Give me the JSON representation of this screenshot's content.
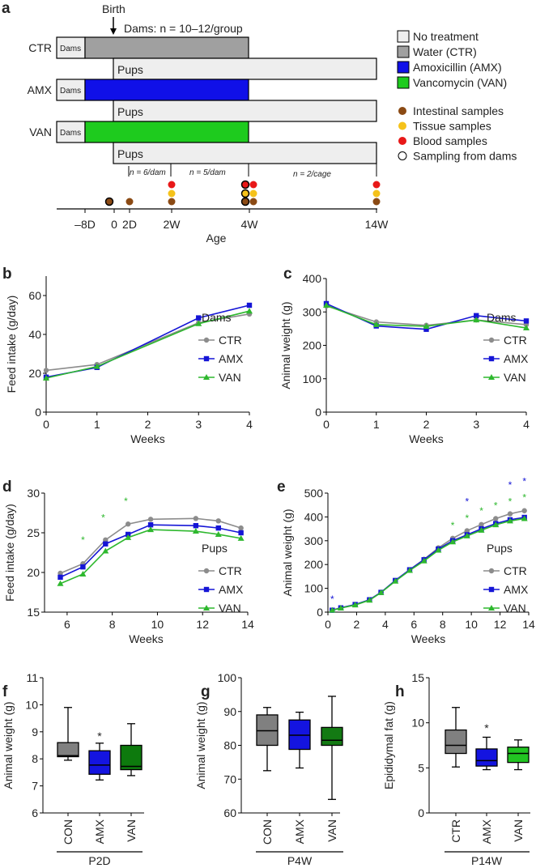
{
  "panel_labels": {
    "a": "a",
    "b": "b",
    "c": "c",
    "d": "d",
    "e": "e",
    "f": "f",
    "g": "g",
    "h": "h"
  },
  "timeline": {
    "birth": "Birth",
    "dams_n": "Dams: n = 10–12/group",
    "groups": [
      "CTR",
      "AMX",
      "VAN"
    ],
    "dams_label": "Dams",
    "pups_label": "Pups",
    "n_labels": [
      "n = 6/dam",
      "n = 5/dam",
      "n = 2/cage"
    ],
    "ticks": [
      "–8D",
      "0",
      "2D",
      "2W",
      "4W",
      "14W"
    ],
    "axis_label": "Age",
    "treatment_legend": [
      {
        "label": "No treatment",
        "color": "#eeeeee"
      },
      {
        "label": "Water (CTR)",
        "color": "#a0a0a0"
      },
      {
        "label": "Amoxicillin (AMX)",
        "color": "#1010e8"
      },
      {
        "label": "Vancomycin (VAN)",
        "color": "#1ecb1e"
      }
    ],
    "sample_legend": [
      {
        "label": "Intestinal samples",
        "color": "#8b4a14"
      },
      {
        "label": "Tissue samples",
        "color": "#f5c21a"
      },
      {
        "label": "Blood samples",
        "color": "#e81818"
      },
      {
        "label": "Sampling from dams",
        "color": "#ffffff"
      }
    ]
  },
  "chart_data": [
    {
      "id": "b",
      "type": "line",
      "xlabel": "Weeks",
      "ylabel": "Feed intake (g/day)",
      "legend_title": "Dams",
      "xlim": [
        0,
        4
      ],
      "ylim": [
        0,
        70
      ],
      "xticks": [
        0,
        1,
        2,
        3,
        4
      ],
      "yticks": [
        0,
        20,
        40,
        60
      ],
      "legend": "right",
      "series": [
        {
          "name": "CTR",
          "color": "#8c8c8c",
          "marker": "circle",
          "x": [
            0,
            1,
            3,
            4
          ],
          "y": [
            21.5,
            24.5,
            46,
            50.5
          ]
        },
        {
          "name": "AMX",
          "color": "#1515d6",
          "marker": "square",
          "x": [
            0,
            1,
            3,
            4
          ],
          "y": [
            18,
            23,
            48.5,
            55
          ]
        },
        {
          "name": "VAN",
          "color": "#2eb82e",
          "marker": "triangle",
          "x": [
            0,
            1,
            3,
            4
          ],
          "y": [
            17.5,
            23.5,
            45.5,
            52
          ]
        }
      ]
    },
    {
      "id": "c",
      "type": "line",
      "xlabel": "Weeks",
      "ylabel": "Animal weight (g)",
      "legend_title": "Dams",
      "xlim": [
        0,
        4
      ],
      "ylim": [
        0,
        400
      ],
      "xticks": [
        0,
        1,
        2,
        3,
        4
      ],
      "yticks": [
        0,
        100,
        200,
        300,
        400
      ],
      "legend": "right",
      "series": [
        {
          "name": "CTR",
          "color": "#8c8c8c",
          "marker": "circle",
          "x": [
            0,
            1,
            2,
            3,
            4
          ],
          "y": [
            318,
            270,
            260,
            276,
            262
          ]
        },
        {
          "name": "AMX",
          "color": "#1515d6",
          "marker": "square",
          "x": [
            0,
            1,
            2,
            3,
            4
          ],
          "y": [
            325,
            258,
            248,
            289,
            273
          ]
        },
        {
          "name": "VAN",
          "color": "#2eb82e",
          "marker": "triangle",
          "x": [
            0,
            1,
            2,
            3,
            4
          ],
          "y": [
            320,
            262,
            257,
            276,
            252
          ]
        }
      ]
    },
    {
      "id": "d",
      "type": "line",
      "xlabel": "Weeks",
      "ylabel": "Feed intake (g/day)",
      "legend_title": "Pups",
      "xlim": [
        5,
        14
      ],
      "ylim": [
        15,
        30
      ],
      "xticks": [
        6,
        8,
        10,
        12,
        14
      ],
      "yticks": [
        15,
        20,
        25,
        30
      ],
      "legend": "right",
      "series": [
        {
          "name": "CTR",
          "color": "#8c8c8c",
          "marker": "circle",
          "x": [
            5.7,
            6.7,
            7.7,
            8.7,
            9.7,
            11.7,
            12.7,
            13.7
          ],
          "y": [
            19.9,
            21.1,
            24.1,
            26.1,
            26.7,
            26.8,
            26.5,
            25.6
          ]
        },
        {
          "name": "AMX",
          "color": "#1515d6",
          "marker": "square",
          "x": [
            5.7,
            6.7,
            7.7,
            8.7,
            9.7,
            11.7,
            12.7,
            13.7
          ],
          "y": [
            19.4,
            20.7,
            23.6,
            24.8,
            26.0,
            25.9,
            25.6,
            25.0
          ]
        },
        {
          "name": "VAN",
          "color": "#2eb82e",
          "marker": "triangle",
          "x": [
            5.7,
            6.7,
            7.7,
            8.7,
            9.7,
            11.7,
            12.7,
            13.7
          ],
          "y": [
            18.6,
            19.8,
            22.7,
            24.4,
            25.4,
            25.2,
            24.8,
            24.3
          ]
        }
      ],
      "asterisks": [
        {
          "x": 6.7,
          "y": 24.2,
          "color": "#2eb82e"
        },
        {
          "x": 7.6,
          "y": 27,
          "color": "#2eb82e"
        },
        {
          "x": 8.6,
          "y": 29.1,
          "color": "#2eb82e"
        }
      ]
    },
    {
      "id": "e",
      "type": "line",
      "xlabel": "Weeks",
      "ylabel": "Animal weight (g)",
      "legend_title": "Pups",
      "xlim": [
        0,
        14
      ],
      "ylim": [
        0,
        500
      ],
      "xticks": [
        0,
        2,
        4,
        6,
        8,
        10,
        12,
        14
      ],
      "yticks": [
        0,
        100,
        200,
        300,
        400,
        500
      ],
      "legend": "right",
      "series": [
        {
          "name": "CTR",
          "color": "#8c8c8c",
          "marker": "circle",
          "x": [
            0.3,
            0.9,
            1.9,
            2.9,
            3.7,
            4.7,
            5.7,
            6.7,
            7.7,
            8.7,
            9.7,
            10.7,
            11.7,
            12.7,
            13.7
          ],
          "y": [
            8,
            18,
            32,
            52,
            83,
            133,
            178,
            222,
            270,
            310,
            342,
            368,
            393,
            413,
            426
          ]
        },
        {
          "name": "AMX",
          "color": "#1515d6",
          "marker": "square",
          "x": [
            0.3,
            0.9,
            1.9,
            2.9,
            3.7,
            4.7,
            5.7,
            6.7,
            7.7,
            8.7,
            9.7,
            10.7,
            11.7,
            12.7,
            13.7
          ],
          "y": [
            8,
            18,
            32,
            52,
            83,
            133,
            178,
            220,
            265,
            300,
            325,
            350,
            372,
            388,
            398
          ]
        },
        {
          "name": "VAN",
          "color": "#2eb82e",
          "marker": "triangle",
          "x": [
            0.3,
            0.9,
            1.9,
            2.9,
            3.7,
            4.7,
            5.7,
            6.7,
            7.7,
            8.7,
            9.7,
            10.7,
            11.7,
            12.7,
            13.7
          ],
          "y": [
            8,
            17,
            30,
            50,
            82,
            130,
            175,
            215,
            260,
            295,
            320,
            344,
            367,
            383,
            393
          ]
        }
      ],
      "asterisks": [
        {
          "x": 0.3,
          "y": 58,
          "color": "#1515d6"
        },
        {
          "x": 9.7,
          "y": 468,
          "color": "#1515d6"
        },
        {
          "x": 12.7,
          "y": 537,
          "color": "#1515d6"
        },
        {
          "x": 13.7,
          "y": 553,
          "color": "#1515d6"
        },
        {
          "x": 8.7,
          "y": 368,
          "color": "#2eb82e"
        },
        {
          "x": 9.7,
          "y": 398,
          "color": "#2eb82e"
        },
        {
          "x": 10.7,
          "y": 428,
          "color": "#2eb82e"
        },
        {
          "x": 11.7,
          "y": 450,
          "color": "#2eb82e"
        },
        {
          "x": 12.7,
          "y": 468,
          "color": "#2eb82e"
        },
        {
          "x": 13.7,
          "y": 484,
          "color": "#2eb82e"
        }
      ]
    },
    {
      "id": "f",
      "type": "box",
      "ylabel": "Animal weight (g)",
      "group_label": "P2D",
      "ylim": [
        6,
        11
      ],
      "yticks": [
        6,
        7,
        8,
        9,
        10,
        11
      ],
      "categories": [
        "CON",
        "AMX",
        "VAN"
      ],
      "boxes": [
        {
          "min": 7.95,
          "q1": 8.08,
          "median": 8.12,
          "q3": 8.6,
          "max": 9.9,
          "color": "#808080"
        },
        {
          "min": 7.22,
          "q1": 7.43,
          "median": 7.77,
          "q3": 8.3,
          "max": 8.58,
          "color": "#1414e0"
        },
        {
          "min": 7.38,
          "q1": 7.6,
          "median": 7.72,
          "q3": 8.5,
          "max": 9.3,
          "color": "#0d7a0d"
        }
      ],
      "asterisks": [
        {
          "category": "AMX",
          "y": 8.9
        }
      ]
    },
    {
      "id": "g",
      "type": "box",
      "ylabel": "Animal weight (g)",
      "group_label": "P4W",
      "ylim": [
        60,
        100
      ],
      "yticks": [
        60,
        70,
        80,
        90,
        100
      ],
      "categories": [
        "CON",
        "AMX",
        "VAN"
      ],
      "boxes": [
        {
          "min": 72.5,
          "q1": 80,
          "median": 84.3,
          "q3": 89,
          "max": 91.2,
          "color": "#808080"
        },
        {
          "min": 73.3,
          "q1": 78.8,
          "median": 83,
          "q3": 87.5,
          "max": 89.8,
          "color": "#1414e0"
        },
        {
          "min": 64,
          "q1": 80,
          "median": 81.5,
          "q3": 85.3,
          "max": 94.5,
          "color": "#137a13"
        }
      ]
    },
    {
      "id": "h",
      "type": "box",
      "ylabel": "Epididymal fat (g)",
      "group_label": "P14W",
      "ylim": [
        0,
        15
      ],
      "yticks": [
        0,
        5,
        10,
        15
      ],
      "categories": [
        "CTR",
        "AMX",
        "VAN"
      ],
      "boxes": [
        {
          "min": 5.1,
          "q1": 6.6,
          "median": 7.5,
          "q3": 9.2,
          "max": 11.7,
          "color": "#808080"
        },
        {
          "min": 4.8,
          "q1": 5.2,
          "median": 5.8,
          "q3": 7.1,
          "max": 8.4,
          "color": "#1414e0"
        },
        {
          "min": 4.8,
          "q1": 5.6,
          "median": 6.6,
          "q3": 7.3,
          "max": 8.1,
          "color": "#22c422"
        }
      ],
      "asterisks": [
        {
          "category": "AMX",
          "y": 9.6
        }
      ]
    }
  ]
}
